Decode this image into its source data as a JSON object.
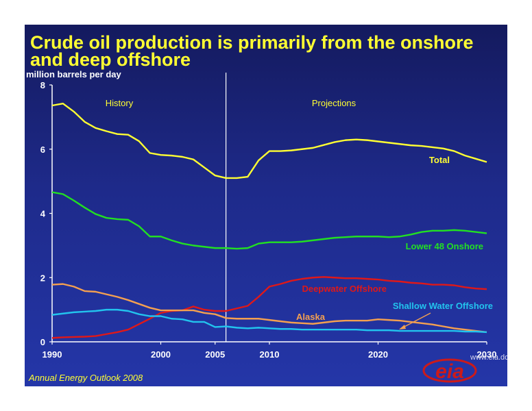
{
  "slide": {
    "title": "Crude oil production is primarily from the onshore and deep offshore",
    "footer": "Annual Energy Outlook 2008",
    "logo_text": "eia",
    "logo_url": "www.eia.doe.gov"
  },
  "colors": {
    "total": "#ffff33",
    "lower48": "#22e022",
    "deepwater": "#e01818",
    "alaska": "#f4a050",
    "shallow": "#22c4ee",
    "phase_history": "#ffff33",
    "phase_projections": "#ffff33",
    "divider": "#ffffff"
  },
  "chart_data": {
    "type": "line",
    "ylabel": "million barrels per day",
    "ylim": [
      0,
      8
    ],
    "yticks": [
      "0",
      "2",
      "4",
      "6",
      "8"
    ],
    "xlim": [
      1990,
      2030
    ],
    "xticks": [
      "1990",
      "2000",
      "2005",
      "2010",
      "2020",
      "2030"
    ],
    "divider_year": 2006,
    "phases": {
      "history": "History",
      "projections": "Projections"
    },
    "x": [
      1990,
      1991,
      1992,
      1993,
      1994,
      1995,
      1996,
      1997,
      1998,
      1999,
      2000,
      2001,
      2002,
      2003,
      2004,
      2005,
      2006,
      2007,
      2008,
      2009,
      2010,
      2011,
      2012,
      2013,
      2014,
      2015,
      2016,
      2017,
      2018,
      2019,
      2020,
      2021,
      2022,
      2023,
      2024,
      2025,
      2026,
      2027,
      2028,
      2029,
      2030
    ],
    "series": [
      {
        "name": "Total",
        "color_key": "total",
        "values": [
          7.36,
          7.42,
          7.17,
          6.85,
          6.66,
          6.56,
          6.47,
          6.45,
          6.25,
          5.88,
          5.82,
          5.8,
          5.76,
          5.68,
          5.43,
          5.18,
          5.1,
          5.1,
          5.14,
          5.65,
          5.94,
          5.94,
          5.96,
          6.0,
          6.04,
          6.13,
          6.22,
          6.28,
          6.3,
          6.28,
          6.24,
          6.2,
          6.16,
          6.12,
          6.1,
          6.06,
          6.02,
          5.94,
          5.8,
          5.7,
          5.6
        ]
      },
      {
        "name": "Lower 48 Onshore",
        "color_key": "lower48",
        "values": [
          4.66,
          4.6,
          4.4,
          4.18,
          3.98,
          3.86,
          3.82,
          3.8,
          3.6,
          3.28,
          3.28,
          3.16,
          3.06,
          3.0,
          2.96,
          2.92,
          2.92,
          2.9,
          2.92,
          3.06,
          3.1,
          3.1,
          3.1,
          3.12,
          3.16,
          3.2,
          3.24,
          3.26,
          3.28,
          3.28,
          3.28,
          3.26,
          3.28,
          3.34,
          3.42,
          3.46,
          3.46,
          3.48,
          3.46,
          3.42,
          3.38
        ]
      },
      {
        "name": "Deepwater Offshore",
        "color_key": "deepwater",
        "values": [
          0.12,
          0.14,
          0.15,
          0.16,
          0.18,
          0.24,
          0.3,
          0.38,
          0.55,
          0.72,
          0.9,
          0.96,
          0.98,
          1.1,
          1.0,
          0.96,
          0.96,
          1.04,
          1.12,
          1.4,
          1.72,
          1.8,
          1.9,
          1.96,
          2.0,
          2.02,
          2.0,
          1.98,
          1.98,
          1.96,
          1.94,
          1.9,
          1.88,
          1.84,
          1.82,
          1.78,
          1.78,
          1.76,
          1.7,
          1.66,
          1.64
        ]
      },
      {
        "name": "Alaska",
        "color_key": "alaska",
        "values": [
          1.78,
          1.8,
          1.72,
          1.58,
          1.56,
          1.48,
          1.4,
          1.3,
          1.18,
          1.06,
          0.98,
          0.98,
          0.98,
          0.98,
          0.9,
          0.86,
          0.74,
          0.72,
          0.72,
          0.72,
          0.68,
          0.64,
          0.6,
          0.58,
          0.56,
          0.6,
          0.64,
          0.66,
          0.66,
          0.66,
          0.7,
          0.68,
          0.66,
          0.62,
          0.58,
          0.54,
          0.48,
          0.42,
          0.38,
          0.34,
          0.3
        ]
      },
      {
        "name": "Shallow Water Offshore",
        "color_key": "shallow",
        "values": [
          0.84,
          0.88,
          0.92,
          0.94,
          0.96,
          1.0,
          1.0,
          0.96,
          0.86,
          0.8,
          0.8,
          0.72,
          0.7,
          0.62,
          0.62,
          0.46,
          0.48,
          0.44,
          0.42,
          0.44,
          0.42,
          0.4,
          0.4,
          0.38,
          0.38,
          0.38,
          0.38,
          0.38,
          0.38,
          0.36,
          0.36,
          0.36,
          0.34,
          0.34,
          0.34,
          0.34,
          0.34,
          0.34,
          0.32,
          0.32,
          0.3
        ]
      }
    ],
    "annotations": [
      {
        "text": "Total",
        "color_key": "total"
      },
      {
        "text": "Lower 48 Onshore",
        "color_key": "lower48"
      },
      {
        "text": "Deepwater Offshore",
        "color_key": "deepwater"
      },
      {
        "text": "Shallow Water Offshore",
        "color_key": "shallow"
      },
      {
        "text": "Alaska",
        "color_key": "alaska"
      }
    ]
  }
}
